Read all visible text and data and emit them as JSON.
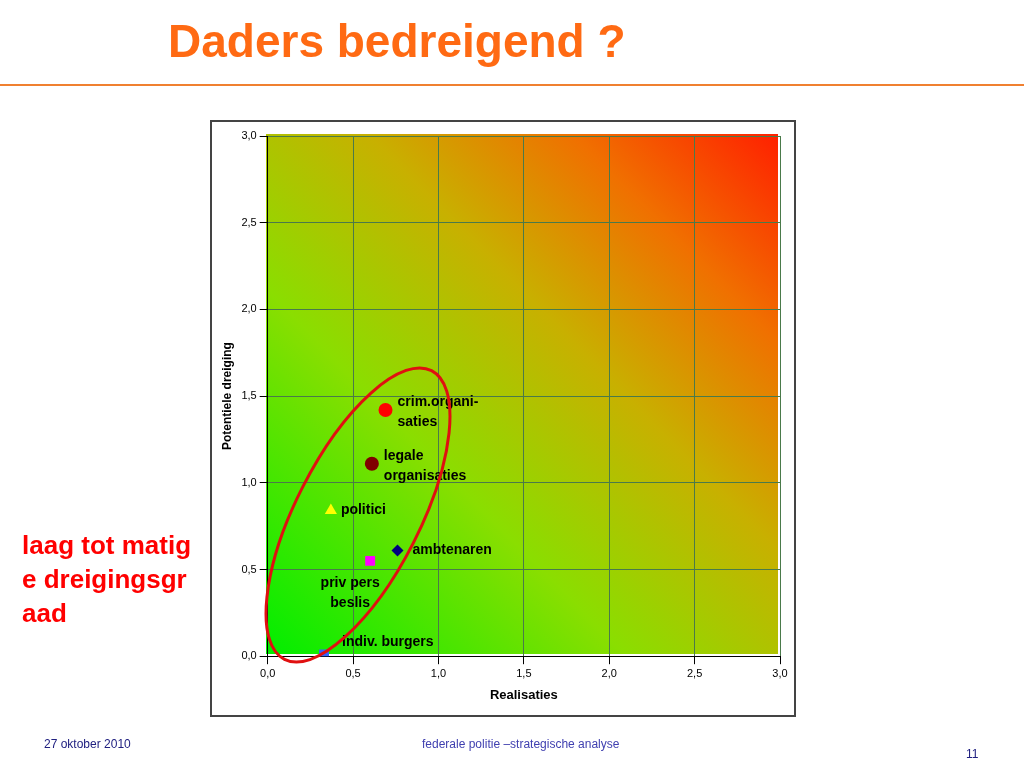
{
  "chart_data": {
    "type": "scatter",
    "title": "Daders bedreigend ?",
    "xlabel": "Realisaties",
    "ylabel": "Potentiele dreiging",
    "xlim": [
      0,
      3
    ],
    "ylim": [
      0,
      3
    ],
    "xticks": [
      {
        "value": 0,
        "label": "0,0"
      },
      {
        "value": 0.5,
        "label": "0,5"
      },
      {
        "value": 1,
        "label": "1,0"
      },
      {
        "value": 1.5,
        "label": "1,5"
      },
      {
        "value": 2,
        "label": "2,0"
      },
      {
        "value": 2.5,
        "label": "2,5"
      },
      {
        "value": 3,
        "label": "3,0"
      }
    ],
    "yticks": [
      {
        "value": 0,
        "label": "0,0"
      },
      {
        "value": 0.5,
        "label": "0,5"
      },
      {
        "value": 1,
        "label": "1,0"
      },
      {
        "value": 1.5,
        "label": "1,5"
      },
      {
        "value": 2,
        "label": "2,0"
      },
      {
        "value": 2.5,
        "label": "2,5"
      },
      {
        "value": 3,
        "label": "3,0"
      }
    ],
    "grid": true,
    "legend": false,
    "series": [
      {
        "name": "crim.organi-saties",
        "color": "#ff0000",
        "marker": "circle",
        "x": [
          0.69
        ],
        "values": [
          1.42
        ]
      },
      {
        "name": "legale organisaties",
        "color": "#800000",
        "marker": "circle",
        "x": [
          0.61
        ],
        "values": [
          1.11
        ]
      },
      {
        "name": "politici",
        "color": "#ffff00",
        "marker": "triangle",
        "x": [
          0.37
        ],
        "values": [
          0.84
        ]
      },
      {
        "name": "ambtenaren",
        "color": "#000080",
        "marker": "diamond",
        "x": [
          0.76
        ],
        "values": [
          0.61
        ]
      },
      {
        "name": "priv pers beslis",
        "color": "#ff00ff",
        "marker": "square",
        "x": [
          0.6
        ],
        "values": [
          0.55
        ]
      },
      {
        "name": "indiv. burgers",
        "color": "#3366ff",
        "marker": "square",
        "x": [
          0.33
        ],
        "values": [
          0.01
        ]
      }
    ],
    "annotations": [
      "laag tot matige dreigingsgraad",
      "27 oktober 2010",
      "federale politie –strategische analyse",
      "11"
    ]
  }
}
